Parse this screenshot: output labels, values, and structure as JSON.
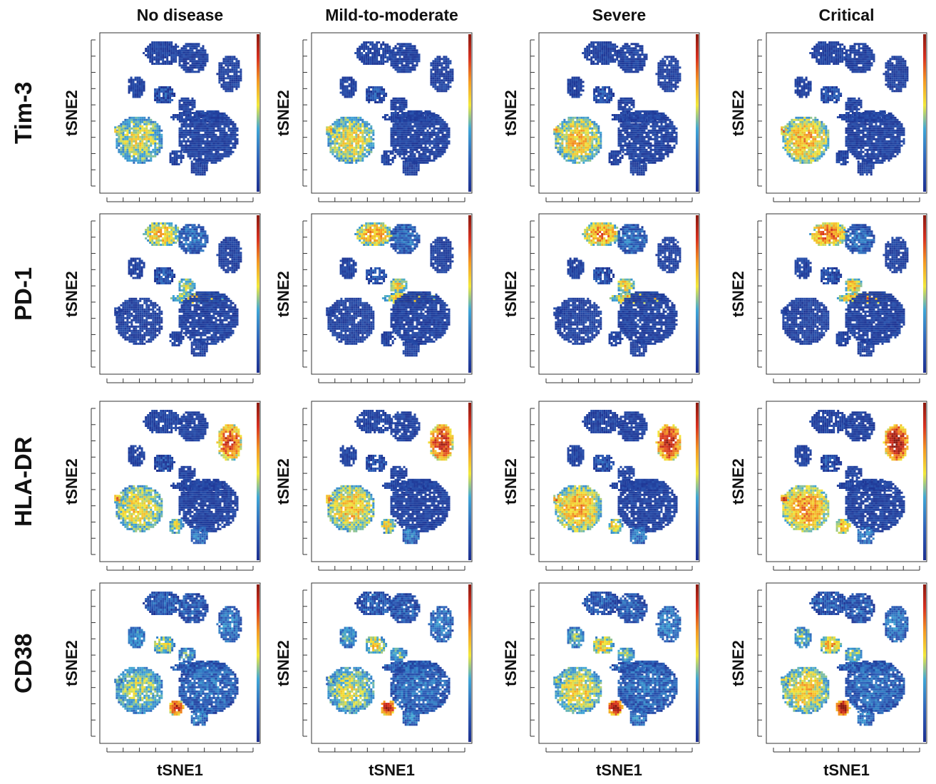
{
  "chart_data": {
    "type": "heatmap",
    "plot_kind": "tSNE scatter colored by marker expression",
    "columns": [
      "No disease",
      "Mild-to-moderate",
      "Severe",
      "Critical"
    ],
    "rows": [
      "Tim-3",
      "PD-1",
      "HLA-DR",
      "CD38"
    ],
    "xlabel": "tSNE1",
    "ylabel": "tSNE2",
    "colorbar": "vertical rainbow scale (dark blue → cyan → yellow → red), right edge of each panel, unlabeled",
    "colormap": [
      "#1c2f8f",
      "#2e5fb8",
      "#3fa7d6",
      "#f2e83a",
      "#f59b22",
      "#d7301f",
      "#8b1a10"
    ]
  }
}
